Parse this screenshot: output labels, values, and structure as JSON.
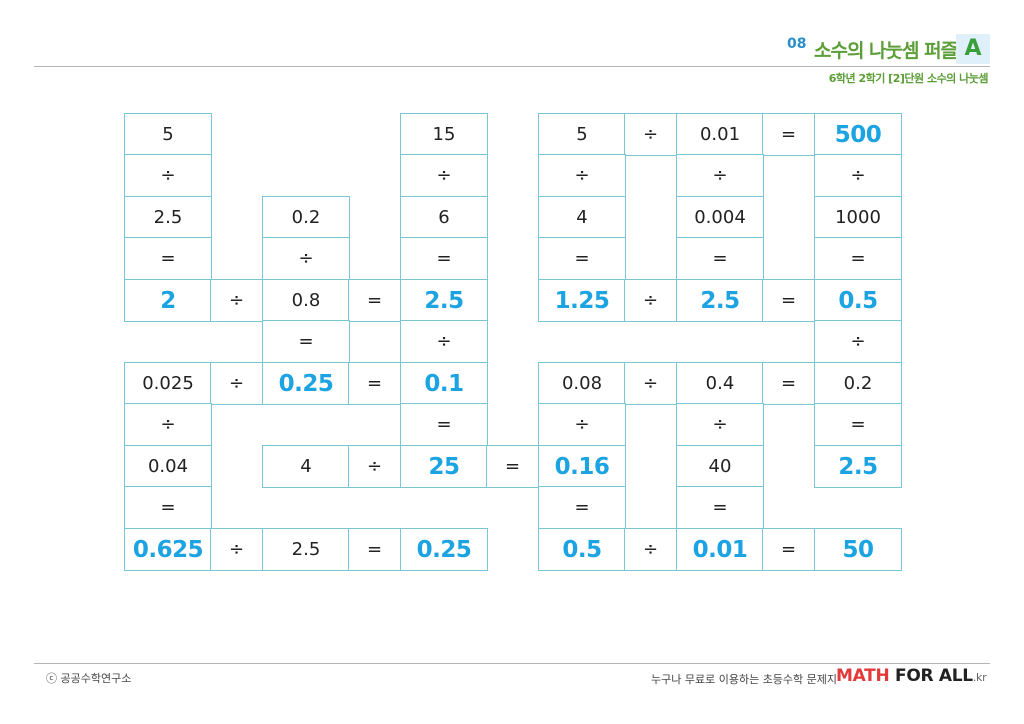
{
  "header": {
    "number": "08",
    "title": "소수의 나눗셈 퍼즐",
    "level": "A",
    "subtitle": "6학년 2학기 [2]단원 소수의 나눗셈"
  },
  "footer": {
    "copyright": "ⓒ 공공수학연구소",
    "slogan": "누구나 무료로 이용하는 초등수학 문제지",
    "brand_math": "MATH",
    "brand_forall": "FOR ALL",
    "brand_kr": ".kr"
  },
  "colors": {
    "answer": "#1ba3e2",
    "border": "#79c7d6",
    "title": "#5c9e37"
  },
  "puzzle": {
    "r0c0": "5",
    "r0c5": "15",
    "r0c7": "5",
    "r0c8": "÷",
    "r0c9": "0.01",
    "r0c10": "=",
    "r0c11": "500",
    "r1c0": "÷",
    "r1c5": "÷",
    "r1c7": "÷",
    "r1c9": "÷",
    "r1c11": "÷",
    "r2c0": "2.5",
    "r2c2": "0.2",
    "r2c5": "6",
    "r2c7": "4",
    "r2c9": "0.004",
    "r2c11": "1000",
    "r3c0": "=",
    "r3c2": "÷",
    "r3c5": "=",
    "r3c7": "=",
    "r3c9": "=",
    "r3c11": "=",
    "r4c0": "2",
    "r4c1": "÷",
    "r4c2": "0.8",
    "r4c3": "=",
    "r4c5": "2.5",
    "r4c7": "1.25",
    "r4c8": "÷",
    "r4c9": "2.5",
    "r4c10": "=",
    "r4c11": "0.5",
    "r5c2": "=",
    "r5c5": "÷",
    "r5c11": "÷",
    "r6c0": "0.025",
    "r6c1": "÷",
    "r6c2": "0.25",
    "r6c3": "=",
    "r6c5": "0.1",
    "r6c7": "0.08",
    "r6c8": "÷",
    "r6c9": "0.4",
    "r6c10": "=",
    "r6c11": "0.2",
    "r7c0": "÷",
    "r7c5": "=",
    "r7c7": "÷",
    "r7c9": "÷",
    "r7c11": "=",
    "r8c0": "0.04",
    "r8c2": "4",
    "r8c3": "÷",
    "r8c5": "25",
    "r8c6": "=",
    "r8c7": "0.16",
    "r8c9": "40",
    "r8c11": "2.5",
    "r9c0": "=",
    "r9c7": "=",
    "r9c9": "=",
    "r10c0": "0.625",
    "r10c1": "÷",
    "r10c2": "2.5",
    "r10c3": "=",
    "r10c5": "0.25",
    "r10c7": "0.5",
    "r10c8": "÷",
    "r10c9": "0.01",
    "r10c10": "=",
    "r10c11": "50"
  }
}
